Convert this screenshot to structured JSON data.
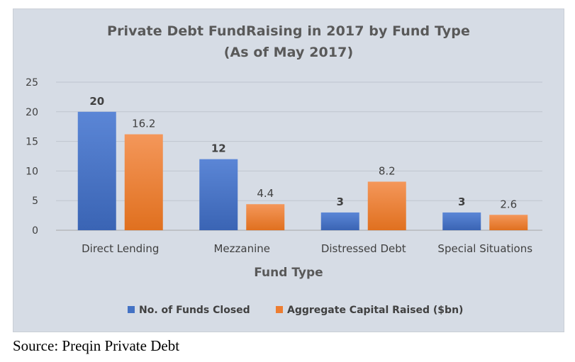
{
  "chart_data": {
    "type": "bar",
    "title": "Private Debt FundRaising in 2017 by Fund Type",
    "subtitle": "(As of May 2017)",
    "xlabel": "Fund Type",
    "ylabel": "",
    "categories": [
      "Direct Lending",
      "Mezzanine",
      "Distressed Debt",
      "Special Situations"
    ],
    "series": [
      {
        "name": "No. of Funds Closed",
        "values": [
          20,
          12,
          3,
          3
        ],
        "color": "#4472c4"
      },
      {
        "name": "Aggregate Capital Raised ($bn)",
        "values": [
          16.2,
          4.4,
          8.2,
          2.6
        ],
        "color": "#ed7d31"
      }
    ],
    "data_labels": [
      [
        "20",
        "12",
        "3",
        "3"
      ],
      [
        "16.2",
        "4.4",
        "8.2",
        "2.6"
      ]
    ],
    "ylim": [
      0,
      25
    ],
    "yticks": [
      "0",
      "5",
      "10",
      "15",
      "20",
      "25"
    ],
    "grid": true,
    "legend_position": "bottom"
  },
  "source": "Source: Preqin Private Debt"
}
